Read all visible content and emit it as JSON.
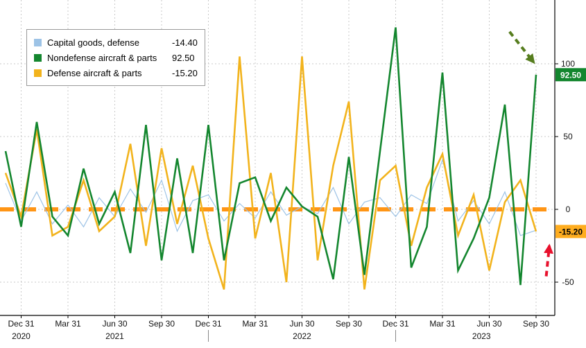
{
  "legend": {
    "items": [
      {
        "label": "Capital goods, defense",
        "value": "-14.40",
        "color": "#9DC3E6"
      },
      {
        "label": "Nondefense aircraft & parts",
        "value": "92.50",
        "color": "#13862E"
      },
      {
        "label": "Defense aircraft & parts",
        "value": "-15.20",
        "color": "#F2B31C"
      }
    ]
  },
  "chart_data": {
    "type": "line",
    "title": "",
    "x_unit": "month",
    "grid": true,
    "legend_position": "top-left",
    "ylim": [
      -73,
      144
    ],
    "yticks": [
      100,
      50,
      0,
      -50
    ],
    "x_tick_labels": [
      {
        "label": "Dec 31",
        "i": 1
      },
      {
        "label": "Mar 31",
        "i": 4
      },
      {
        "label": "Jun 30",
        "i": 7
      },
      {
        "label": "Sep 30",
        "i": 10
      },
      {
        "label": "Dec 31",
        "i": 13
      },
      {
        "label": "Mar 31",
        "i": 16
      },
      {
        "label": "Jun 30",
        "i": 19
      },
      {
        "label": "Sep 30",
        "i": 22
      },
      {
        "label": "Dec 31",
        "i": 25
      },
      {
        "label": "Mar 31",
        "i": 28
      },
      {
        "label": "Jun 30",
        "i": 31
      },
      {
        "label": "Sep 30",
        "i": 34
      }
    ],
    "year_labels": [
      {
        "label": "2020",
        "i": 1
      },
      {
        "label": "2021",
        "i": 7
      },
      {
        "label": "2022",
        "i": 19
      },
      {
        "label": "2023",
        "i": 30.5
      }
    ],
    "year_dividers": [
      13,
      25
    ],
    "zero_line": {
      "value": 0,
      "color": "#FF9515",
      "style": "dashed"
    },
    "series": [
      {
        "name": "capital-goods-defense",
        "color": "#9DC3E6",
        "width": 1.2,
        "last_value": -14.4,
        "values": [
          18,
          -8,
          12,
          -10,
          3,
          -12,
          8,
          -5,
          14,
          -2,
          20,
          -15,
          6,
          10,
          -8,
          4,
          -6,
          12,
          -4,
          2,
          -3,
          15,
          -10,
          5,
          8,
          -5,
          10,
          4,
          34,
          -8,
          6,
          -10,
          12,
          -18,
          -14.4
        ]
      },
      {
        "name": "defense-aircraft-parts",
        "color": "#F2B31C",
        "width": 2.6,
        "last_value": -15.2,
        "values": [
          25,
          -5,
          55,
          -18,
          -12,
          20,
          -15,
          -5,
          45,
          -25,
          42,
          -10,
          30,
          -20,
          -55,
          105,
          -20,
          25,
          -50,
          105,
          -35,
          30,
          74,
          -55,
          20,
          30,
          -25,
          15,
          38,
          -18,
          10,
          -42,
          5,
          20,
          -15.2
        ]
      },
      {
        "name": "nondefense-aircraft-parts",
        "color": "#13862E",
        "width": 2.6,
        "last_value": 92.5,
        "values": [
          40,
          -12,
          60,
          -5,
          -18,
          28,
          -10,
          12,
          -30,
          58,
          -35,
          35,
          -30,
          58,
          -35,
          18,
          22,
          -8,
          15,
          2,
          -5,
          -48,
          36,
          -45,
          40,
          125,
          -40,
          -12,
          94,
          -42,
          -20,
          8,
          72,
          -52,
          92.5
        ]
      }
    ],
    "end_badges": [
      {
        "text": "92.50",
        "value": 92.5,
        "bg": "#13862E",
        "fg": "#ffffff"
      },
      {
        "text": "-15.20",
        "value": -15.2,
        "bg": "#FFAD1F",
        "fg": "#000000"
      }
    ],
    "annotations": [
      {
        "type": "arrow",
        "name": "green-arrow",
        "color": "#567D1E",
        "from_i": 32.3,
        "from_v": 122,
        "to_i": 33.85,
        "to_v": 101
      },
      {
        "type": "arrow",
        "name": "red-arrow",
        "color": "#E8112D",
        "from_i": 34.65,
        "from_v": -46,
        "to_i": 34.85,
        "to_v": -25
      }
    ]
  }
}
